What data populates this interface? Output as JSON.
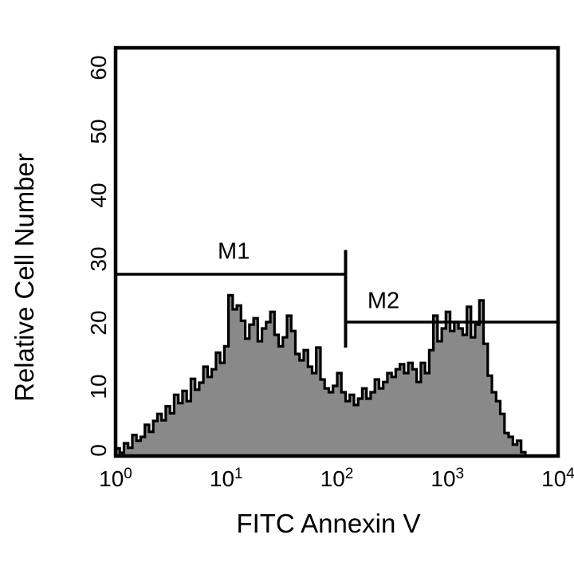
{
  "figure": {
    "background": "#ffffff",
    "frame_color": "#000000",
    "histogram_fill": "#898989",
    "histogram_stroke": "#000000",
    "gate_line_color": "#000000"
  },
  "chart_data": {
    "type": "area",
    "subtype": "flow-cytometry-histogram",
    "title": "",
    "xlabel": "FITC Annexin V",
    "ylabel": "Relative Cell Number",
    "x_scale": "log",
    "xlim": [
      1,
      10000
    ],
    "ylim": [
      0,
      64
    ],
    "grid": false,
    "legend": false,
    "x_ticks": [
      {
        "value": 1,
        "base": "10",
        "exp": "0"
      },
      {
        "value": 10,
        "base": "10",
        "exp": "1"
      },
      {
        "value": 100,
        "base": "10",
        "exp": "2"
      },
      {
        "value": 1000,
        "base": "10",
        "exp": "3"
      },
      {
        "value": 10000,
        "base": "10",
        "exp": "4"
      }
    ],
    "y_ticks": [
      {
        "value": 0,
        "label": "0"
      },
      {
        "value": 10,
        "label": "10"
      },
      {
        "value": 20,
        "label": "20"
      },
      {
        "value": 30,
        "label": "30"
      },
      {
        "value": 40,
        "label": "40"
      },
      {
        "value": 50,
        "label": "50"
      },
      {
        "value": 60,
        "label": "60"
      }
    ],
    "histogram": {
      "log_start": 0,
      "log_end": 3.7044,
      "values": [
        1.2,
        0.5,
        2.0,
        1.3,
        3.3,
        2.4,
        3.0,
        4.9,
        3.8,
        5.5,
        6.6,
        5.6,
        7.8,
        6.7,
        9.6,
        8.3,
        10.2,
        8.6,
        12.1,
        10.4,
        11.5,
        14.0,
        12.4,
        13.6,
        16.2,
        14.6,
        17.2,
        25.2,
        23.0,
        23.6,
        21.2,
        18.4,
        20.6,
        21.6,
        18.0,
        20.0,
        21.0,
        22.6,
        19.0,
        17.2,
        18.6,
        22.0,
        19.6,
        16.0,
        15.0,
        16.6,
        14.0,
        13.0,
        17.0,
        12.0,
        10.6,
        10.0,
        11.0,
        13.0,
        10.0,
        8.6,
        9.6,
        8.0,
        9.0,
        10.6,
        9.0,
        10.0,
        12.0,
        10.6,
        11.6,
        13.0,
        12.4,
        13.6,
        14.4,
        13.0,
        14.6,
        13.6,
        11.6,
        14.6,
        13.0,
        16.6,
        22.0,
        18.0,
        20.0,
        22.6,
        19.6,
        21.0,
        20.0,
        19.0,
        23.4,
        18.6,
        20.6,
        24.4,
        17.6,
        12.6,
        10.0,
        8.6,
        6.6,
        3.6,
        3.0,
        1.8,
        2.4,
        0.6
      ]
    },
    "gates": [
      {
        "label": "M1",
        "level": 28.5,
        "x_from": 1,
        "x_to": 120,
        "label_at": {
          "x": 11.7,
          "y": 32.0
        }
      },
      {
        "label": "M2",
        "level": 21.0,
        "x_from": 120,
        "x_to": 10000,
        "label_at": {
          "x": 264,
          "y": 24.2
        }
      }
    ],
    "divider": {
      "x": 120,
      "y_from": 17.0,
      "y_to": 32.3
    }
  }
}
